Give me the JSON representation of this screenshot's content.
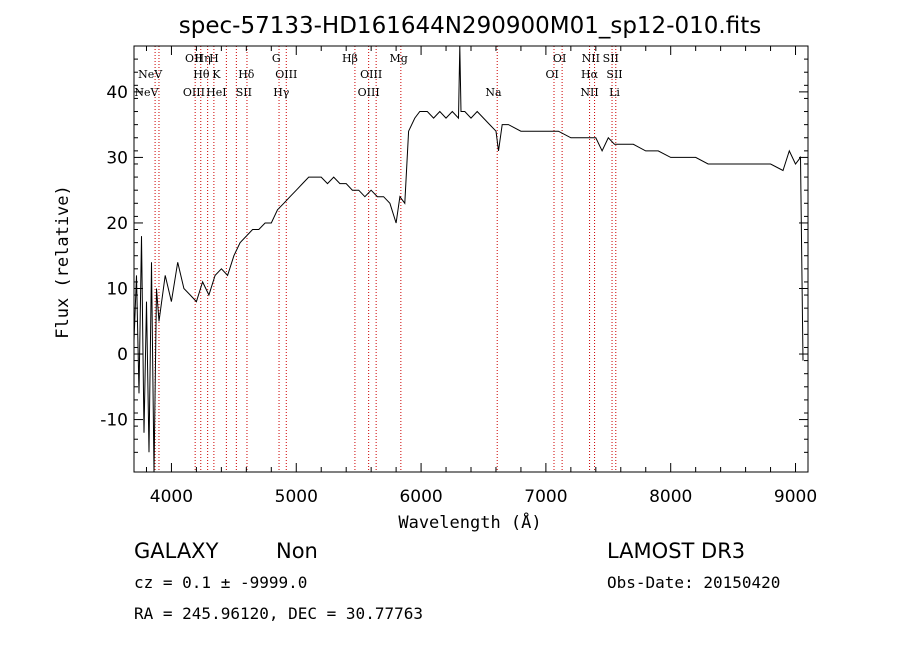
{
  "chart_data": {
    "type": "line",
    "title": "spec-57133-HD161644N290900M01_sp12-010.fits",
    "xlabel": "Wavelength (Å)",
    "ylabel": "Flux (relative)",
    "xlim": [
      3700,
      9100
    ],
    "ylim": [
      -18,
      47
    ],
    "x_ticks": [
      4000,
      5000,
      6000,
      7000,
      8000,
      9000
    ],
    "y_ticks": [
      -10,
      0,
      10,
      20,
      30,
      40
    ],
    "grid": false,
    "line_color": "#000000",
    "marker_line_color": "#cc0000",
    "series": [
      {
        "x": [
          3700,
          3720,
          3740,
          3760,
          3780,
          3800,
          3820,
          3840,
          3860,
          3880,
          3900,
          3950,
          4000,
          4050,
          4100,
          4150,
          4200,
          4250,
          4300,
          4350,
          4400,
          4450,
          4500,
          4550,
          4600,
          4650,
          4700,
          4750,
          4800,
          4850,
          4900,
          4950,
          5000,
          5050,
          5100,
          5150,
          5200,
          5250,
          5300,
          5350,
          5400,
          5450,
          5500,
          5550,
          5600,
          5650,
          5700,
          5750,
          5800,
          5830,
          5870,
          5900,
          5950,
          5990,
          6050,
          6100,
          6150,
          6200,
          6250,
          6300,
          6310,
          6320,
          6350,
          6400,
          6450,
          6500,
          6550,
          6600,
          6620,
          6650,
          6700,
          6800,
          6900,
          7000,
          7100,
          7200,
          7300,
          7400,
          7450,
          7500,
          7550,
          7600,
          7700,
          7800,
          7900,
          8000,
          8100,
          8200,
          8300,
          8400,
          8500,
          8600,
          8700,
          8800,
          8900,
          8950,
          9000,
          9040,
          9060
        ],
        "y": [
          2,
          12,
          -6,
          18,
          -12,
          8,
          -15,
          14,
          -18,
          10,
          5,
          12,
          8,
          14,
          10,
          9,
          8,
          11,
          9,
          12,
          13,
          12,
          15,
          17,
          18,
          19,
          19,
          20,
          20,
          22,
          23,
          24,
          25,
          26,
          27,
          27,
          27,
          26,
          27,
          26,
          26,
          25,
          25,
          24,
          25,
          24,
          24,
          23,
          20,
          24,
          23,
          34,
          36,
          37,
          37,
          36,
          37,
          36,
          37,
          36,
          48,
          37,
          37,
          36,
          37,
          36,
          35,
          34,
          31,
          35,
          35,
          34,
          34,
          34,
          34,
          33,
          33,
          33,
          31,
          33,
          32,
          32,
          32,
          31,
          31,
          30,
          30,
          30,
          29,
          29,
          29,
          29,
          29,
          29,
          28,
          31,
          29,
          30,
          -1
        ]
      }
    ],
    "lines": [
      {
        "wl": 3869,
        "top": "NeV",
        "bottom": ""
      },
      {
        "wl": 3900,
        "top": "NeV",
        "bottom": ""
      },
      {
        "wl": 4190,
        "top": "OII",
        "bottom": "OIII"
      },
      {
        "wl": 4235,
        "top": "Hη",
        "bottom": "Hθ"
      },
      {
        "wl": 4290,
        "top": "H",
        "bottom": "HeI"
      },
      {
        "wl": 4340,
        "top": "K",
        "bottom": ""
      },
      {
        "wl": 4440,
        "top": "",
        "bottom": "HeI"
      },
      {
        "wl": 4520,
        "top": "Hδ",
        "bottom": "SII"
      },
      {
        "wl": 4605,
        "top": "",
        "bottom": ""
      },
      {
        "wl": 4862,
        "top": "G",
        "bottom": "Hγ"
      },
      {
        "wl": 4920,
        "top": "",
        "bottom": "OIII"
      },
      {
        "wl": 5470,
        "top": "Hβ",
        "bottom": ""
      },
      {
        "wl": 5580,
        "top": "OIII",
        "bottom": "OIII"
      },
      {
        "wl": 5640,
        "top": "",
        "bottom": ""
      },
      {
        "wl": 5838,
        "top": "Mg",
        "bottom": ""
      },
      {
        "wl": 6610,
        "top": "Na",
        "bottom": ""
      },
      {
        "wl": 7065,
        "top": "OI",
        "bottom": "OI"
      },
      {
        "wl": 7130,
        "top": "",
        "bottom": ""
      },
      {
        "wl": 7350,
        "top": "NII",
        "bottom": "Hα"
      },
      {
        "wl": 7390,
        "top": "",
        "bottom": "NII"
      },
      {
        "wl": 7530,
        "top": "SII",
        "bottom": "SII"
      },
      {
        "wl": 7560,
        "top": "",
        "bottom": "Li"
      }
    ],
    "line_labels": [
      {
        "text": "NeV",
        "wl": 3830,
        "row": 1
      },
      {
        "text": "NeV",
        "wl": 3800,
        "row": 2
      },
      {
        "text": "OII",
        "wl": 4180,
        "row": 0
      },
      {
        "text": "Hη",
        "wl": 4250,
        "row": 0
      },
      {
        "text": "H",
        "wl": 4340,
        "row": 0
      },
      {
        "text": "Hθ",
        "wl": 4240,
        "row": 1
      },
      {
        "text": "K",
        "wl": 4360,
        "row": 1
      },
      {
        "text": "Hδ",
        "wl": 4600,
        "row": 1
      },
      {
        "text": "OIII",
        "wl": 4180,
        "row": 2
      },
      {
        "text": "HeI",
        "wl": 4360,
        "row": 2
      },
      {
        "text": "SII",
        "wl": 4580,
        "row": 2
      },
      {
        "text": "G",
        "wl": 4840,
        "row": 0
      },
      {
        "text": "OIII",
        "wl": 4920,
        "row": 1
      },
      {
        "text": "Hγ",
        "wl": 4880,
        "row": 2
      },
      {
        "text": "Hβ",
        "wl": 5430,
        "row": 0
      },
      {
        "text": "Mg",
        "wl": 5820,
        "row": 0
      },
      {
        "text": "OIII",
        "wl": 5600,
        "row": 1
      },
      {
        "text": "OIII",
        "wl": 5580,
        "row": 2
      },
      {
        "text": "Na",
        "wl": 6580,
        "row": 2
      },
      {
        "text": "OI",
        "wl": 7110,
        "row": 0
      },
      {
        "text": "NII",
        "wl": 7360,
        "row": 0
      },
      {
        "text": "SII",
        "wl": 7520,
        "row": 0
      },
      {
        "text": "OI",
        "wl": 7050,
        "row": 1
      },
      {
        "text": "Hα",
        "wl": 7350,
        "row": 1
      },
      {
        "text": "SII",
        "wl": 7550,
        "row": 1
      },
      {
        "text": "NII",
        "wl": 7350,
        "row": 2
      },
      {
        "text": "Li",
        "wl": 7550,
        "row": 2
      }
    ]
  },
  "info": {
    "class": "GALAXY",
    "subclass": "Non",
    "survey": "LAMOST DR3",
    "cz": "cz = 0.1 ± -9999.0",
    "obs_date": "Obs-Date: 20150420",
    "radec": "RA = 245.96120, DEC =  30.77763"
  }
}
